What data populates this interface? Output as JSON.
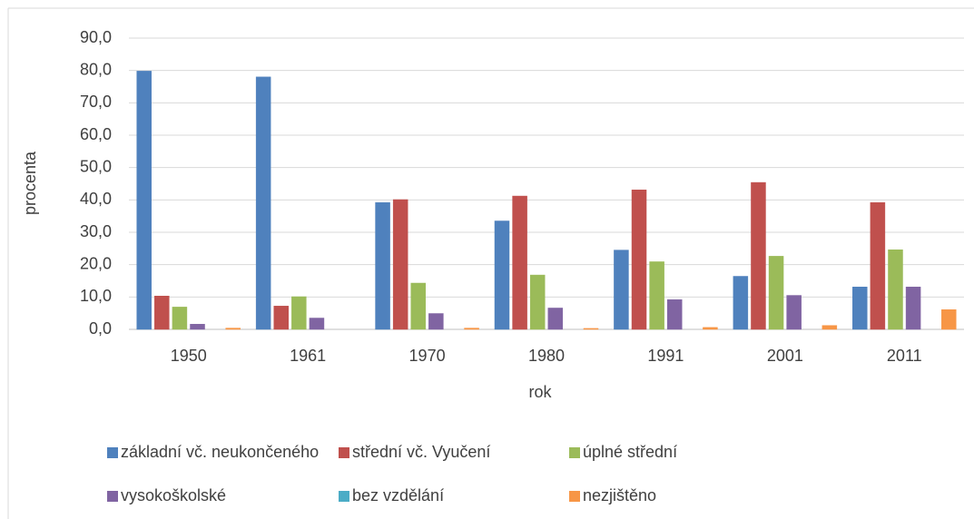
{
  "chart_data": {
    "type": "bar",
    "categories": [
      "1950",
      "1961",
      "1970",
      "1980",
      "1991",
      "2001",
      "2011"
    ],
    "series": [
      {
        "name": "základní vč. neukončeného",
        "color": "#4f81bd",
        "values": [
          79.8,
          78.0,
          39.2,
          33.5,
          24.5,
          16.4,
          13.1
        ]
      },
      {
        "name": "střední vč. Vyučení",
        "color": "#c0504d",
        "values": [
          10.3,
          7.2,
          40.1,
          41.2,
          43.1,
          45.4,
          39.2
        ]
      },
      {
        "name": "úplné střední",
        "color": "#9bbb59",
        "values": [
          6.9,
          10.1,
          14.3,
          16.8,
          20.9,
          22.6,
          24.6
        ]
      },
      {
        "name": "vysokoškolské",
        "color": "#8064a2",
        "values": [
          1.6,
          3.5,
          4.9,
          6.6,
          9.2,
          10.5,
          13.1
        ]
      },
      {
        "name": "bez vzdělání",
        "color": "#4bacc6",
        "values": [
          0,
          0,
          0,
          0,
          0,
          0,
          0
        ]
      },
      {
        "name": "nezjištěno",
        "color": "#f79646",
        "values": [
          0.4,
          0,
          0.4,
          0.3,
          0.6,
          1.2,
          6.1
        ]
      }
    ],
    "xlabel": "rok",
    "ylabel": "procenta",
    "ylim": [
      0,
      90
    ],
    "yticks": [
      {
        "value": 0,
        "label": "0,0"
      },
      {
        "value": 10,
        "label": "10,0"
      },
      {
        "value": 20,
        "label": "20,0"
      },
      {
        "value": 30,
        "label": "30,0"
      },
      {
        "value": 40,
        "label": "40,0"
      },
      {
        "value": 50,
        "label": "50,0"
      },
      {
        "value": 60,
        "label": "60,0"
      },
      {
        "value": 70,
        "label": "70,0"
      },
      {
        "value": 80,
        "label": "80,0"
      },
      {
        "value": 90,
        "label": "90,0"
      }
    ],
    "grid": true,
    "legend": "bottom"
  }
}
